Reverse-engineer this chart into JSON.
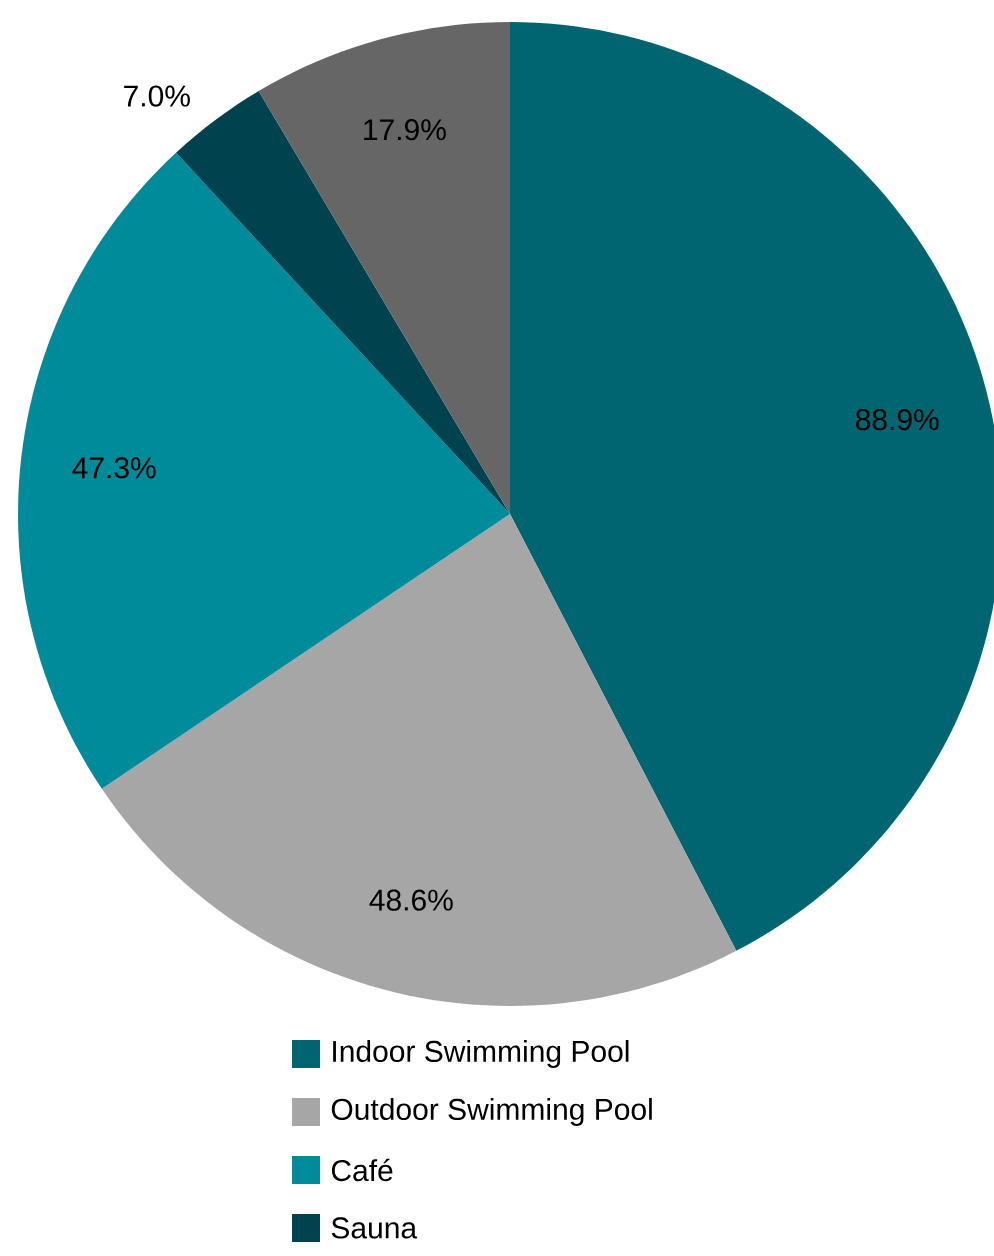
{
  "chart_data": {
    "type": "pie",
    "categories": [
      "Indoor Swimming Pool",
      "Outdoor Swimming Pool",
      "Café",
      "Sauna",
      null
    ],
    "values": [
      88.9,
      48.6,
      47.3,
      7.0,
      17.9
    ],
    "value_labels": [
      "88.9%",
      "48.6%",
      "47.3%",
      "7.0%",
      "17.9%"
    ],
    "colors": [
      "#006570",
      "#a6a6a6",
      "#008b9a",
      "#00434f",
      "#666666"
    ],
    "legend": "bottom"
  }
}
